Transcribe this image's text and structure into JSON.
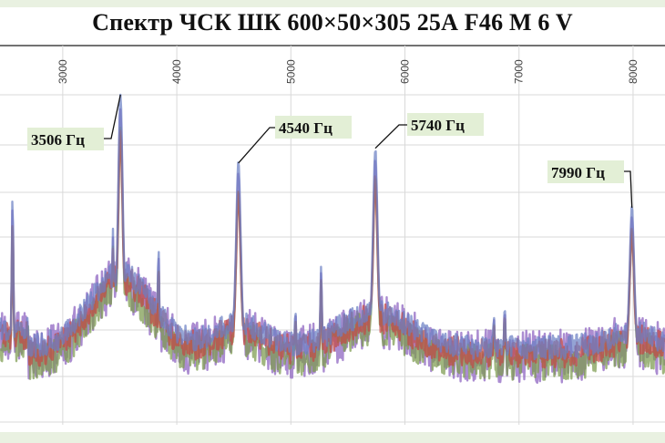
{
  "chart_data": {
    "type": "line",
    "title": "Спектр ЧСК ШК 600×50×305 25А F46 M 6 V",
    "xlabel": "",
    "ylabel": "",
    "xlim": [
      2450,
      8280
    ],
    "xticks": [
      3000,
      4000,
      5000,
      6000,
      7000,
      8000
    ],
    "xtick_labels": [
      "3000",
      "4000",
      "5000",
      "6000",
      "7000",
      "8000"
    ],
    "ylim": [
      0,
      1
    ],
    "grid": true,
    "legend": "none",
    "series": [
      {
        "color": "#8a5fbf"
      },
      {
        "color": "#7b9a4e"
      },
      {
        "color": "#c24a45"
      },
      {
        "color": "#6b7fc4"
      }
    ],
    "peaks": [
      {
        "label": "3506 Гц",
        "x": 3506,
        "y": 1.0
      },
      {
        "label": "4540 Гц",
        "x": 4540,
        "y": 0.77
      },
      {
        "label": "5740 Гц",
        "x": 5740,
        "y": 0.82
      },
      {
        "label": "7990 Гц",
        "x": 7990,
        "y": 0.62
      }
    ],
    "minor_peaks": [
      {
        "x": 2560,
        "y": 0.66
      },
      {
        "x": 3440,
        "y": 0.55
      },
      {
        "x": 3840,
        "y": 0.48
      },
      {
        "x": 5040,
        "y": 0.28
      },
      {
        "x": 5265,
        "y": 0.43
      },
      {
        "x": 6780,
        "y": 0.26
      },
      {
        "x": 6875,
        "y": 0.3
      }
    ]
  }
}
